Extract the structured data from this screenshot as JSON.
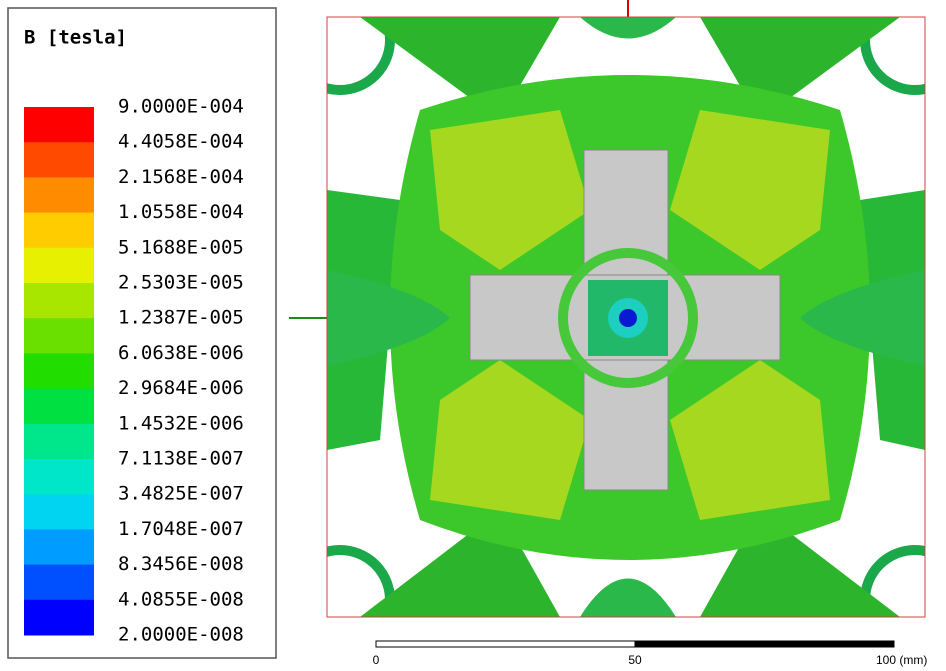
{
  "legend": {
    "title": "B [tesla]",
    "labels": [
      "9.0000E-004",
      "4.4058E-004",
      "2.1568E-004",
      "1.0558E-004",
      "5.1688E-005",
      "2.5303E-005",
      "1.2387E-005",
      "6.0638E-006",
      "2.9684E-006",
      "1.4532E-006",
      "7.1138E-007",
      "3.4825E-007",
      "1.7048E-007",
      "8.3456E-008",
      "4.0855E-008",
      "2.0000E-008"
    ],
    "colors": [
      "#ff0000",
      "#ff4a00",
      "#ff8c00",
      "#ffcc00",
      "#e6f000",
      "#a8e600",
      "#6ae000",
      "#22dd00",
      "#00e040",
      "#00e68a",
      "#00e6c8",
      "#00d4f0",
      "#009cff",
      "#0050ff",
      "#0000ff"
    ]
  },
  "scale_bar": {
    "labels": [
      "0",
      "50",
      "100 (mm)"
    ]
  }
}
